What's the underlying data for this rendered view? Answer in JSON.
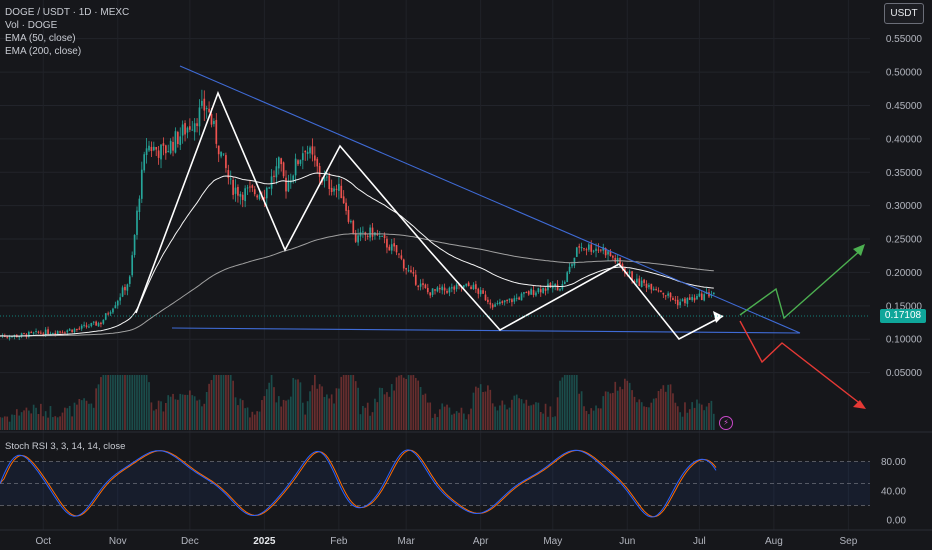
{
  "legend": {
    "symbol": "DOGE / USDT · 1D · MEXC",
    "volume": "Vol · DOGE",
    "ema50": "EMA (50, close)",
    "ema200": "EMA (200, close)",
    "stoch": "Stoch RSI 3, 3, 14, 14, close"
  },
  "currency": "USDT",
  "last_price": "0.17108",
  "icons": {
    "alert": "lightning-icon"
  },
  "colors": {
    "background": "#16171b",
    "up": "#26a69a",
    "down": "#ef5350",
    "ema50": "#f5f5f5",
    "ema200": "#a0a0a0",
    "trendline": "#3f6bd6",
    "pattern": "#ffffff",
    "bull_arrow": "#4caf50",
    "bear_arrow": "#e53935",
    "stoch_k": "#2962ff",
    "stoch_d": "#ff6d00"
  },
  "chart_data": {
    "type": "candlestick",
    "y_axis": {
      "ticks": [
        "0.55000",
        "0.50000",
        "0.45000",
        "0.40000",
        "0.35000",
        "0.30000",
        "0.25000",
        "0.20000",
        "0.15000",
        "0.10000",
        "0.05000"
      ],
      "range": [
        0.0,
        0.56
      ]
    },
    "x_axis": {
      "ticks": [
        "Oct",
        "Nov",
        "Dec",
        "2025",
        "Feb",
        "Mar",
        "Apr",
        "May",
        "Jun",
        "Jul",
        "Aug",
        "Sep"
      ]
    },
    "price_path": [
      [
        "2024-09-20",
        0.105
      ],
      [
        "2024-10-01",
        0.11
      ],
      [
        "2024-10-15",
        0.115
      ],
      [
        "2024-10-25",
        0.125
      ],
      [
        "2024-11-01",
        0.16
      ],
      [
        "2024-11-06",
        0.19
      ],
      [
        "2024-11-10",
        0.32
      ],
      [
        "2024-11-13",
        0.39
      ],
      [
        "2024-11-20",
        0.38
      ],
      [
        "2024-11-28",
        0.41
      ],
      [
        "2024-12-03",
        0.43
      ],
      [
        "2024-12-08",
        0.45
      ],
      [
        "2024-12-12",
        0.4
      ],
      [
        "2024-12-18",
        0.33
      ],
      [
        "2024-12-22",
        0.32
      ],
      [
        "2025-01-01",
        0.32
      ],
      [
        "2025-01-07",
        0.36
      ],
      [
        "2025-01-10",
        0.33
      ],
      [
        "2025-01-18",
        0.39
      ],
      [
        "2025-01-25",
        0.34
      ],
      [
        "2025-02-02",
        0.32
      ],
      [
        "2025-02-08",
        0.25
      ],
      [
        "2025-02-15",
        0.26
      ],
      [
        "2025-02-25",
        0.23
      ],
      [
        "2025-03-03",
        0.195
      ],
      [
        "2025-03-10",
        0.17
      ],
      [
        "2025-03-20",
        0.175
      ],
      [
        "2025-03-28",
        0.18
      ],
      [
        "2025-04-07",
        0.15
      ],
      [
        "2025-04-15",
        0.16
      ],
      [
        "2025-04-25",
        0.175
      ],
      [
        "2025-05-05",
        0.18
      ],
      [
        "2025-05-12",
        0.24
      ],
      [
        "2025-05-22",
        0.235
      ],
      [
        "2025-05-28",
        0.215
      ],
      [
        "2025-06-05",
        0.185
      ],
      [
        "2025-06-12",
        0.18
      ],
      [
        "2025-06-22",
        0.155
      ],
      [
        "2025-06-30",
        0.162
      ],
      [
        "2025-07-08",
        0.171
      ]
    ],
    "volume_range": [
      0.0,
      1.0
    ],
    "stoch_rsi": {
      "ticks": [
        "80.00",
        "40.00",
        "0.00"
      ],
      "range": [
        0,
        100
      ],
      "bands": [
        20,
        50,
        80
      ]
    }
  }
}
